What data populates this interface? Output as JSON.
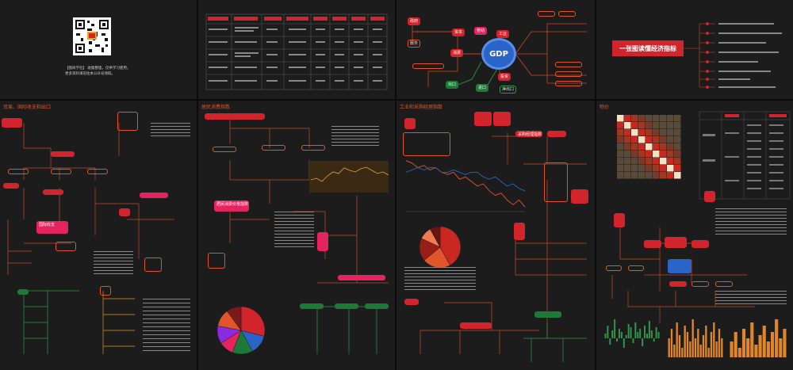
{
  "qr": {
    "caption_line1": "【图商学社】 收集整理，仅供学习使用。",
    "caption_line2": "更多资料请前往本公众号领取。"
  },
  "sections": {
    "trade": "贸易、国际收支和出口",
    "consumption": "居民消费指数",
    "industry": "工业和采购经理指数",
    "prices": "物价"
  },
  "title_panel": {
    "title": "一张图读懂经济指标"
  },
  "gdp": {
    "center": "GDP",
    "nodes": [
      "资本",
      "劳动",
      "消费",
      "投资",
      "出口",
      "进口",
      "净出口",
      "政府",
      "工业",
      "服务"
    ]
  },
  "centers": {
    "import_export": "国际收支",
    "pmi": "采购经理指数",
    "consumer_price": "居民消费价格指数"
  },
  "colors": {
    "primary": "#d2242c",
    "accent": "#e0552a",
    "pink": "#e3245e",
    "green": "#2f9b4a",
    "blue": "#2a64c9",
    "background": "#1c1c1c"
  },
  "chart_data": [
    {
      "type": "pie",
      "values": [
        29,
        13,
        14,
        10,
        12,
        12,
        10
      ]
    },
    {
      "type": "line",
      "series": [
        {
          "values": [
            55,
            54,
            52,
            53,
            51,
            52,
            50,
            49,
            50,
            47,
            48,
            46,
            44,
            45,
            42,
            40,
            41,
            38,
            36,
            38,
            35
          ]
        },
        {
          "values": [
            50,
            51,
            52,
            51,
            52,
            52,
            50,
            50,
            51,
            50,
            49,
            50,
            50,
            48,
            47,
            48,
            46,
            44,
            45,
            43,
            42
          ]
        }
      ]
    },
    {
      "type": "pie",
      "values": [
        42,
        22,
        18,
        10,
        8
      ]
    },
    {
      "type": "bar",
      "values": [
        3,
        8,
        -4,
        5,
        12,
        -2,
        6,
        4,
        -6,
        2,
        9,
        7,
        -3,
        10,
        4,
        6,
        -5,
        8,
        3,
        11,
        5,
        -2,
        7,
        4
      ]
    },
    {
      "type": "bar",
      "values": [
        6,
        9,
        4,
        11,
        7,
        3,
        10,
        8,
        5,
        12,
        6,
        9,
        4,
        7,
        10,
        3,
        8,
        11,
        5,
        9,
        6
      ]
    },
    {
      "type": "bar",
      "values": [
        5,
        8,
        3,
        9,
        6,
        11,
        4,
        7,
        10,
        5,
        8,
        12,
        6,
        9
      ]
    }
  ]
}
